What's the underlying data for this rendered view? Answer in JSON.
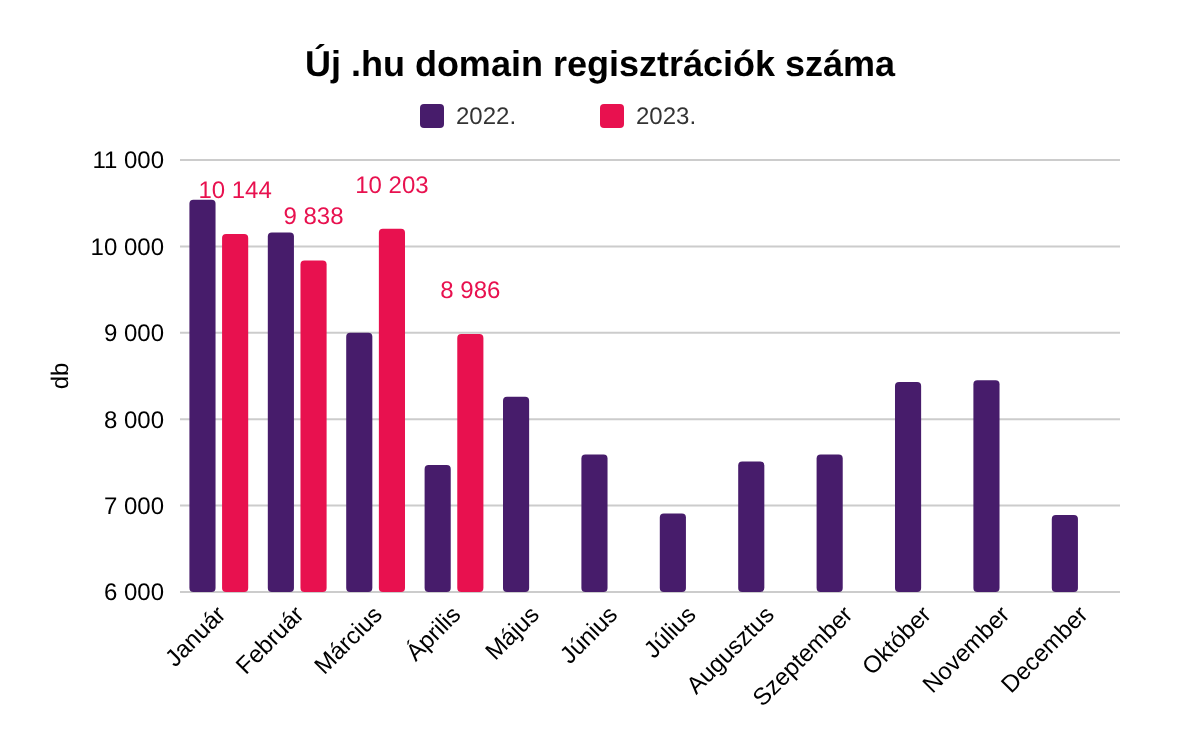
{
  "chart_data": {
    "type": "bar",
    "title": "Új .hu domain regisztrációk száma",
    "ylabel": "db",
    "categories": [
      "Január",
      "Február",
      "Március",
      "Április",
      "Május",
      "Június",
      "Július",
      "Augusztus",
      "Szeptember",
      "Október",
      "November",
      "December"
    ],
    "series": [
      {
        "name": "2022.",
        "color": "#471c6b",
        "values": [
          10540,
          10160,
          9000,
          7470,
          8260,
          7590,
          6910,
          7510,
          7590,
          8430,
          8450,
          6890
        ]
      },
      {
        "name": "2023.",
        "color": "#e8114f",
        "values": [
          10144,
          9838,
          10203,
          8986,
          null,
          null,
          null,
          null,
          null,
          null,
          null,
          null
        ],
        "value_labels": [
          "10 144",
          "9 838",
          "10 203",
          "8 986",
          null,
          null,
          null,
          null,
          null,
          null,
          null,
          null
        ]
      }
    ],
    "ylim": [
      6000,
      11000
    ],
    "yticks": [
      {
        "value": 6000,
        "label": "6 000"
      },
      {
        "value": 7000,
        "label": "7 000"
      },
      {
        "value": 8000,
        "label": "8 000"
      },
      {
        "value": 9000,
        "label": "9 000"
      },
      {
        "value": 10000,
        "label": "10 000"
      },
      {
        "value": 11000,
        "label": "11 000"
      }
    ],
    "grid": "y",
    "legend": "top"
  }
}
